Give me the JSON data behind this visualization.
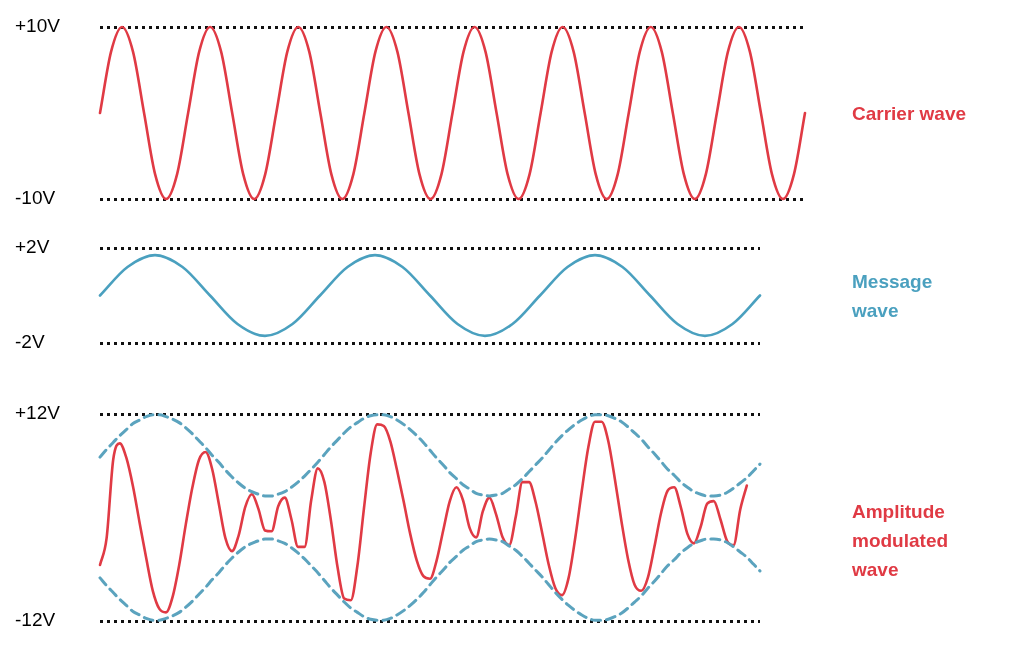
{
  "chart_data": [
    {
      "type": "line",
      "categories": [
        null,
        null,
        null,
        null,
        null,
        null,
        null,
        null,
        null,
        null,
        null,
        null,
        null,
        null,
        null,
        null,
        null,
        null,
        null,
        null,
        null,
        null,
        null,
        null,
        null,
        null,
        null,
        null,
        null,
        null,
        null,
        null,
        null,
        null,
        null,
        null,
        null,
        null,
        null,
        null,
        null,
        null,
        null,
        null,
        null,
        null,
        null,
        null,
        null,
        null,
        null,
        null,
        null,
        null,
        null,
        null,
        null,
        null,
        null,
        null,
        null,
        null,
        null,
        null,
        null
      ],
      "series": [
        {
          "name": "Carrier wave",
          "color": "#e03a44",
          "line_style": "solid",
          "values": [
            0,
            7.1,
            10,
            7.1,
            0,
            -7.1,
            -10,
            -7.1,
            0,
            7.1,
            10,
            7.1,
            0,
            -7.1,
            -10,
            -7.1,
            0,
            7.1,
            10,
            7.1,
            0,
            -7.1,
            -10,
            -7.1,
            0,
            7.1,
            10,
            7.1,
            0,
            -7.1,
            -10,
            -7.1,
            0,
            7.1,
            10,
            7.1,
            0,
            -7.1,
            -10,
            -7.1,
            0,
            7.1,
            10,
            7.1,
            0,
            -7.1,
            -10,
            -7.1,
            0,
            7.1,
            10,
            7.1,
            0,
            -7.1,
            -10,
            -7.1,
            0,
            7.1,
            10,
            7.1,
            0,
            -7.1,
            -10,
            -7.1,
            0
          ]
        }
      ],
      "ylim": [
        -10,
        10
      ],
      "yticks": [
        {
          "value": 10,
          "label": "+10V"
        },
        {
          "value": -10,
          "label": "-10V"
        }
      ],
      "grid": "y",
      "marker": "none"
    },
    {
      "type": "line",
      "categories": [
        null,
        null,
        null,
        null,
        null,
        null,
        null,
        null,
        null,
        null,
        null,
        null,
        null,
        null,
        null,
        null,
        null,
        null,
        null,
        null,
        null,
        null,
        null,
        null,
        null
      ],
      "series": [
        {
          "name": "Message wave",
          "color": "#4aa0bf",
          "line_style": "solid",
          "values": [
            0,
            1.2,
            1.7,
            1.2,
            0,
            -1.2,
            -1.7,
            -1.2,
            0,
            1.2,
            1.7,
            1.2,
            0,
            -1.2,
            -1.7,
            -1.2,
            0,
            1.2,
            1.7,
            1.2,
            0,
            -1.2,
            -1.7,
            -1.2,
            0
          ]
        }
      ],
      "ylim": [
        -2,
        2
      ],
      "yticks": [
        {
          "value": 2,
          "label": "+2V"
        },
        {
          "value": -2,
          "label": "-2V"
        }
      ],
      "grid": "y",
      "marker": "none"
    },
    {
      "type": "line",
      "categories": [
        null,
        null,
        null,
        null,
        null,
        null,
        null,
        null,
        null,
        null,
        null,
        null,
        null,
        null,
        null,
        null,
        null,
        null,
        null,
        null,
        null,
        null,
        null,
        null,
        null,
        null,
        null,
        null,
        null,
        null,
        null,
        null,
        null,
        null,
        null,
        null,
        null,
        null,
        null,
        null,
        null,
        null,
        null,
        null,
        null,
        null,
        null,
        null,
        null,
        null,
        null,
        null,
        null,
        null,
        null,
        null,
        null,
        null,
        null,
        null,
        null,
        null,
        null,
        null,
        null,
        null,
        null,
        null,
        null,
        null,
        null,
        null,
        null,
        null,
        null,
        null,
        null,
        null,
        null,
        null,
        null,
        null,
        null,
        null,
        null,
        null,
        null,
        null,
        null,
        null,
        null,
        null,
        null,
        null,
        null,
        null,
        null,
        null,
        null,
        null,
        null
      ],
      "series": [
        {
          "color": "#5ba3be",
          "line_style": "dashed",
          "values": [
            7.0,
            7.9,
            8.7,
            9.5,
            10.2,
            10.9,
            11.3,
            11.7,
            11.9,
            11.9,
            11.7,
            11.4,
            11.0,
            10.4,
            9.7,
            8.9,
            8.1,
            7.2,
            6.4,
            5.5,
            4.7,
            4.0,
            3.4,
            3.0,
            2.7,
            2.5,
            2.5,
            2.7,
            3.0,
            3.5,
            4.1,
            4.8,
            5.6,
            6.4,
            7.3,
            8.2,
            9.0,
            9.8,
            10.5,
            11.0,
            11.5,
            11.8,
            11.9,
            11.9,
            11.7,
            11.3,
            10.8,
            10.2,
            9.5,
            8.7,
            7.8,
            6.9,
            6.1,
            5.2,
            4.5,
            3.8,
            3.3,
            2.8,
            2.6,
            2.5,
            2.6,
            2.8,
            3.3,
            3.8,
            4.5,
            5.3,
            6.1,
            6.9,
            7.8,
            8.7,
            9.5,
            10.2,
            10.8,
            11.3,
            11.7,
            11.9,
            11.9,
            11.8,
            11.5,
            11.1,
            10.5,
            9.8,
            9.1,
            8.2,
            7.4,
            6.5,
            5.6,
            4.9,
            4.1,
            3.5,
            3.0,
            2.7,
            2.5,
            2.5,
            2.6,
            2.9,
            3.4,
            4.0,
            4.6,
            5.4,
            6.2
          ]
        },
        {
          "color": "#5ba3be",
          "line_style": "dashed",
          "values": [
            -7.0,
            -7.9,
            -8.7,
            -9.5,
            -10.2,
            -10.9,
            -11.3,
            -11.7,
            -11.9,
            -11.9,
            -11.7,
            -11.4,
            -11.0,
            -10.4,
            -9.7,
            -8.9,
            -8.1,
            -7.2,
            -6.4,
            -5.5,
            -4.7,
            -4.0,
            -3.4,
            -3.0,
            -2.7,
            -2.5,
            -2.5,
            -2.7,
            -3.0,
            -3.5,
            -4.1,
            -4.8,
            -5.6,
            -6.4,
            -7.3,
            -8.2,
            -9.0,
            -9.8,
            -10.5,
            -11.0,
            -11.5,
            -11.8,
            -11.9,
            -11.9,
            -11.7,
            -11.3,
            -10.8,
            -10.2,
            -9.5,
            -8.7,
            -7.8,
            -6.9,
            -6.1,
            -5.2,
            -4.5,
            -3.8,
            -3.3,
            -2.8,
            -2.6,
            -2.5,
            -2.6,
            -2.8,
            -3.3,
            -3.8,
            -4.5,
            -5.3,
            -6.1,
            -6.9,
            -7.8,
            -8.7,
            -9.5,
            -10.2,
            -10.8,
            -11.3,
            -11.7,
            -11.9,
            -11.9,
            -11.8,
            -11.5,
            -11.1,
            -10.5,
            -9.8,
            -9.1,
            -8.2,
            -7.4,
            -6.5,
            -5.6,
            -4.9,
            -4.1,
            -3.5,
            -3.0,
            -2.7,
            -2.5,
            -2.5,
            -2.6,
            -2.9,
            -3.4,
            -4.0,
            -4.6,
            -5.4,
            -6.2
          ]
        },
        {
          "name": "Amplitude modulated wave",
          "color": "#e03a44",
          "line_style": "solid",
          "values": [
            -5.5,
            -2.4,
            6.7,
            8.6,
            6.9,
            3.6,
            -0.6,
            -4.7,
            -8.5,
            -10.6,
            -11.0,
            -9.2,
            -5.5,
            -0.8,
            3.5,
            6.7,
            7.6,
            5.6,
            1.6,
            -2.4,
            -3.9,
            -2.1,
            1.2,
            2.7,
            1.0,
            -1.5,
            -1.6,
            1.3,
            2.3,
            -0.2,
            -3.4,
            -3.4,
            2.0,
            5.7,
            4.1,
            -0.4,
            -5.8,
            -9.4,
            -9.6,
            -5.6,
            1.1,
            7.4,
            10.8,
            10.6,
            8.8,
            5.5,
            1.9,
            -1.9,
            -5.0,
            -6.8,
            -7.1,
            -5.0,
            -1.5,
            1.9,
            3.5,
            2.0,
            -1.2,
            -2.3,
            0.7,
            2.3,
            0.4,
            -2.3,
            -3.2,
            0.1,
            4.1,
            4.1,
            1.8,
            -1.8,
            -5.5,
            -8.2,
            -9.0,
            -7.0,
            -2.4,
            3.1,
            8.2,
            11.1,
            11.1,
            8.9,
            4.5,
            -0.4,
            -4.8,
            -7.8,
            -8.5,
            -7.0,
            -3.4,
            0.5,
            3.1,
            3.5,
            1.2,
            -1.9,
            -3.0,
            -1.1,
            1.6,
            1.9,
            -0.2,
            -2.7,
            -3.2,
            0.9,
            3.7,
            null,
            null
          ]
        }
      ],
      "ylim": [
        -12,
        12
      ],
      "yticks": [
        {
          "value": 12,
          "label": "+12V"
        },
        {
          "value": -12,
          "label": "-12V"
        }
      ],
      "grid": "y",
      "marker": "none"
    }
  ]
}
